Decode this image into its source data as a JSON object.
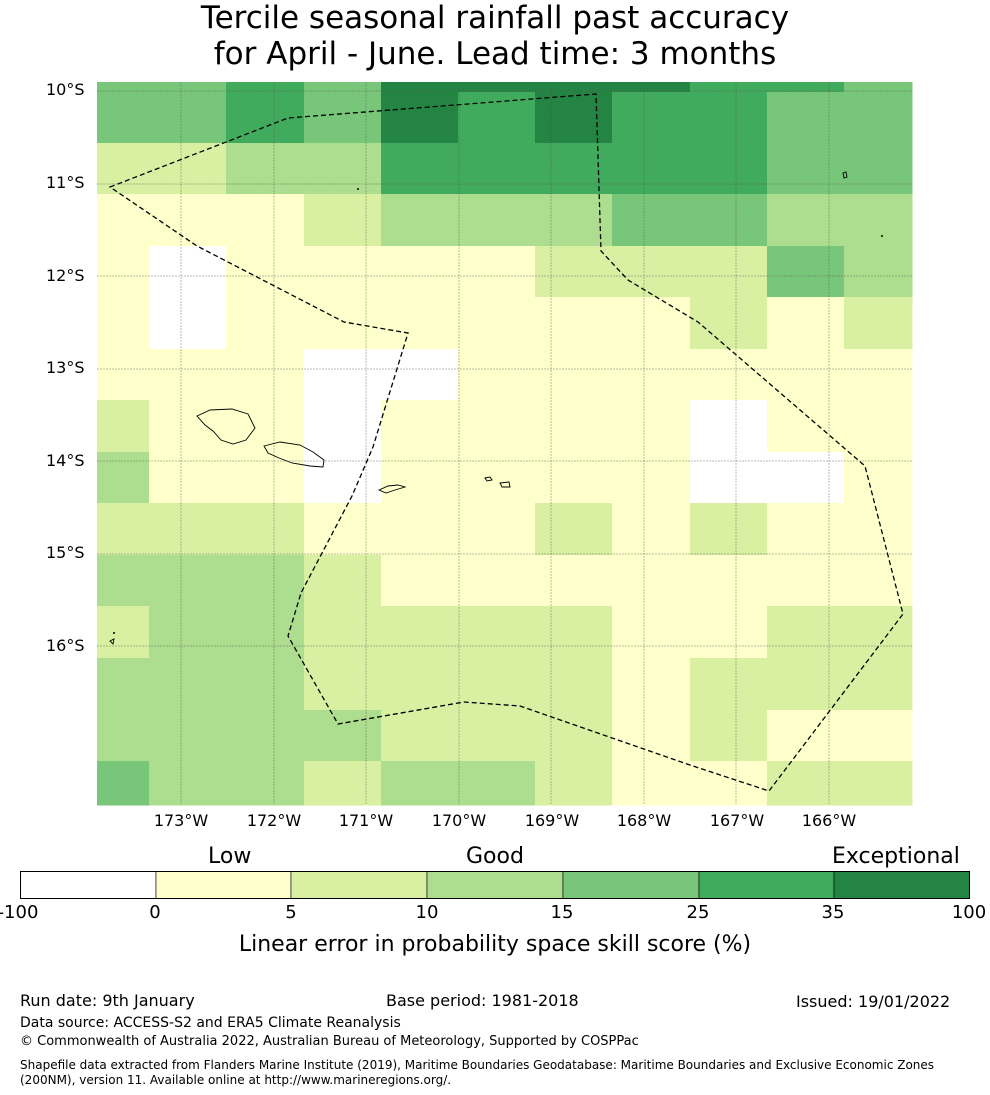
{
  "title_line1": "Tercile seasonal rainfall past accuracy",
  "title_line2": "for April - June. Lead time: 3 months",
  "lat_labels": [
    "10°S",
    "11°S",
    "12°S",
    "13°S",
    "14°S",
    "15°S",
    "16°S"
  ],
  "lon_labels": [
    "173°W",
    "172°W",
    "171°W",
    "170°W",
    "169°W",
    "168°W",
    "167°W",
    "166°W"
  ],
  "colorbar": {
    "categories": [
      "Low",
      "Good",
      "Exceptional"
    ],
    "ticks": [
      "-100",
      "0",
      "5",
      "10",
      "15",
      "25",
      "35",
      "100"
    ],
    "colors": [
      "#ffffff",
      "#ffffcc",
      "#d9f0a3",
      "#addd8e",
      "#78c679",
      "#41ab5d",
      "#238443"
    ],
    "label": "Linear error in probability space skill score (%)"
  },
  "grid_data": {
    "description_levels": "0=<0, 1=0-5, 2=5-10, 3=10-15, 4=15-25, 5=25-35, 6=35-100",
    "rows": [
      [
        4,
        4,
        5,
        4,
        6,
        5,
        6,
        5,
        5,
        4,
        4
      ],
      [
        2,
        2,
        3,
        3,
        5,
        5,
        5,
        5,
        5,
        4,
        4
      ],
      [
        1,
        1,
        1,
        2,
        3,
        3,
        3,
        4,
        4,
        3,
        3
      ],
      [
        1,
        0,
        1,
        1,
        1,
        1,
        2,
        2,
        2,
        4,
        3
      ],
      [
        1,
        0,
        1,
        1,
        1,
        1,
        1,
        1,
        2,
        1,
        2
      ],
      [
        1,
        1,
        1,
        0,
        0,
        1,
        1,
        1,
        1,
        1,
        1
      ],
      [
        2,
        1,
        1,
        0,
        1,
        1,
        1,
        1,
        0,
        1,
        1
      ],
      [
        3,
        1,
        1,
        0,
        1,
        1,
        1,
        1,
        0,
        0,
        1
      ],
      [
        2,
        2,
        2,
        1,
        1,
        1,
        2,
        1,
        2,
        1,
        1
      ],
      [
        3,
        3,
        3,
        2,
        1,
        1,
        1,
        1,
        1,
        1,
        1
      ],
      [
        2,
        3,
        3,
        2,
        2,
        2,
        2,
        1,
        1,
        2,
        2
      ],
      [
        3,
        3,
        3,
        2,
        2,
        2,
        2,
        1,
        2,
        2,
        2
      ],
      [
        3,
        3,
        3,
        3,
        2,
        2,
        2,
        1,
        2,
        1,
        1
      ],
      [
        4,
        3,
        3,
        2,
        3,
        3,
        2,
        1,
        1,
        2,
        2
      ]
    ]
  },
  "footer": {
    "run_date": "Run date: 9th January",
    "base_period": "Base period: 1981-2018",
    "issued": "Issued: 19/01/2022",
    "data_source": "Data source: ACCESS-S2 and ERA5 Climate Reanalysis",
    "copyright": "© Commonwealth of Australia 2022, Australian Bureau of Meteorology, Supported by COSPPac",
    "shapefile_line1": "Shapefile data extracted from Flanders Marine Institute (2019), Maritime Boundaries Geodatabase: Maritime Boundaries and Exclusive Economic Zones",
    "shapefile_line2": "(200NM), version 11. Available online at http://www.marineregions.org/."
  }
}
